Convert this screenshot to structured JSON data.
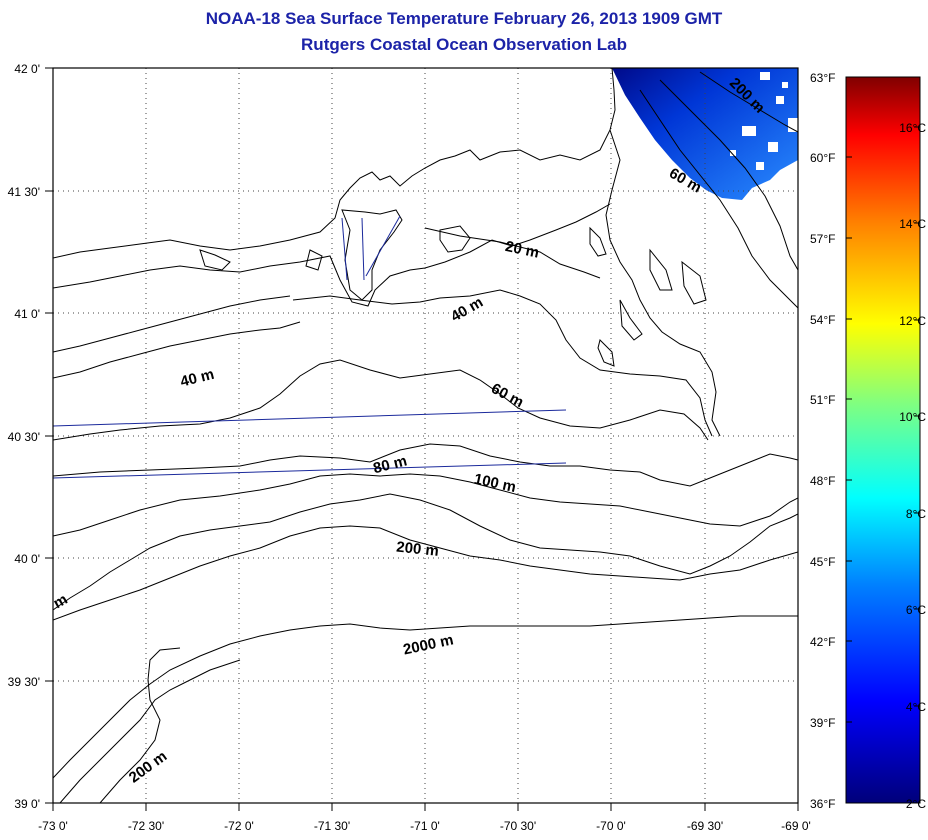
{
  "header": {
    "title": "NOAA-18 Sea Surface Temperature February 26, 2013 1909 GMT",
    "subtitle": "Rutgers Coastal Ocean Observation Lab"
  },
  "map": {
    "lon_range": [
      -73,
      -69
    ],
    "lat_range": [
      39,
      42
    ],
    "lon_ticks": [
      "-73 0'",
      "-72 30'",
      "-72 0'",
      "-71 30'",
      "-71 0'",
      "-70 30'",
      "-70 0'",
      "-69 30'",
      "-69 0'"
    ],
    "lat_ticks": [
      "42 0'",
      "41 30'",
      "41 0'",
      "40 30'",
      "40 0'",
      "39 30'",
      "39 0'"
    ],
    "fahrenheit_ticks": [
      "63°F",
      "60°F",
      "57°F",
      "54°F",
      "51°F",
      "48°F",
      "45°F",
      "42°F",
      "39°F",
      "36°F"
    ],
    "celsius_ticks": [
      "16°C",
      "14°C",
      "12°C",
      "10°C",
      "8°C",
      "6°C",
      "4°C",
      "2°C"
    ],
    "grid": true,
    "colors": {
      "title": "#1c23a8",
      "track": "#1b2a9c",
      "sst_cold": "#000a8a",
      "sst_warm": "#2a8cff"
    },
    "depth_labels": [
      {
        "text": "200 m"
      },
      {
        "text": "60 m"
      },
      {
        "text": "20 m"
      },
      {
        "text": "40 m"
      },
      {
        "text": "40 m"
      },
      {
        "text": "60 m"
      },
      {
        "text": "80 m"
      },
      {
        "text": "100 m"
      },
      {
        "text": "200 m"
      },
      {
        "text": "m"
      },
      {
        "text": "2000 m"
      },
      {
        "text": "200 m"
      }
    ]
  }
}
